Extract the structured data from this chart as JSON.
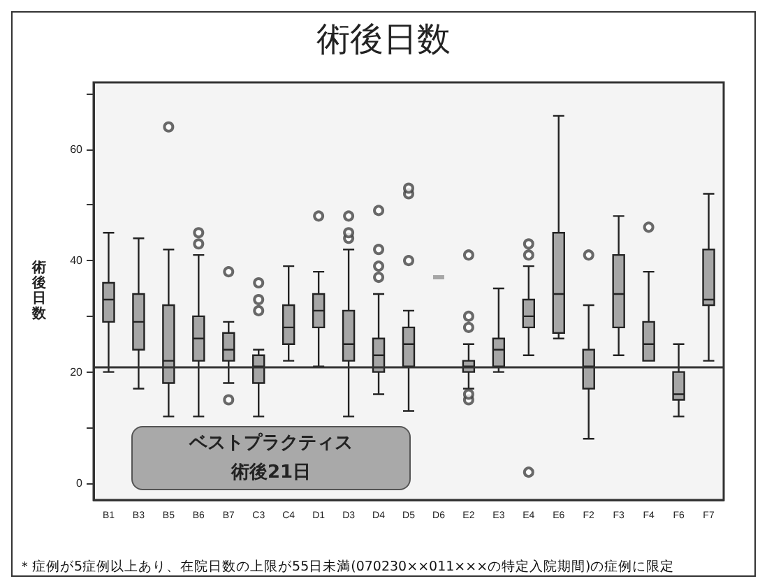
{
  "chart_data": {
    "type": "box",
    "title": "術後日数",
    "ylabel": "術後日数",
    "categories": [
      "B1",
      "B3",
      "B5",
      "B6",
      "B7",
      "C3",
      "C4",
      "D1",
      "D3",
      "D4",
      "D5",
      "D6",
      "E2",
      "E3",
      "E4",
      "E6",
      "F2",
      "F3",
      "F4",
      "F6",
      "F7"
    ],
    "boxes": [
      {
        "low": 20,
        "q1": 29,
        "median": 33,
        "q3": 36,
        "high": 45
      },
      {
        "low": 17,
        "q1": 24,
        "median": 29,
        "q3": 34,
        "high": 44
      },
      {
        "low": 12,
        "q1": 18,
        "median": 22,
        "q3": 32,
        "high": 42,
        "outliers": [
          64
        ]
      },
      {
        "low": 12,
        "q1": 22,
        "median": 26,
        "q3": 30,
        "high": 41,
        "outliers": [
          43,
          45
        ]
      },
      {
        "low": 18,
        "q1": 22,
        "median": 24,
        "q3": 27,
        "high": 29,
        "outliers": [
          15,
          38
        ]
      },
      {
        "low": 12,
        "q1": 18,
        "median": 21,
        "q3": 23,
        "high": 24,
        "outliers": [
          31,
          33,
          36
        ]
      },
      {
        "low": 22,
        "q1": 25,
        "median": 28,
        "q3": 32,
        "high": 39
      },
      {
        "low": 21,
        "q1": 28,
        "median": 31,
        "q3": 34,
        "high": 38,
        "outliers": [
          48
        ]
      },
      {
        "low": 12,
        "q1": 22,
        "median": 25,
        "q3": 31,
        "high": 42,
        "outliers": [
          44,
          45,
          48
        ]
      },
      {
        "low": 16,
        "q1": 20,
        "median": 23,
        "q3": 26,
        "high": 34,
        "outliers": [
          37,
          39,
          42,
          49
        ]
      },
      {
        "low": 13,
        "q1": 21,
        "median": 25,
        "q3": 28,
        "high": 31,
        "outliers": [
          40,
          52,
          53
        ]
      },
      {
        "low": 37,
        "q1": 37,
        "median": 37,
        "q3": 37,
        "high": 37
      },
      {
        "low": 17,
        "q1": 20,
        "median": 21,
        "q3": 22,
        "high": 25,
        "outliers": [
          15,
          16,
          28,
          30,
          41
        ]
      },
      {
        "low": 20,
        "q1": 21,
        "median": 24,
        "q3": 26,
        "high": 35
      },
      {
        "low": 23,
        "q1": 28,
        "median": 30,
        "q3": 33,
        "high": 39,
        "outliers": [
          2,
          41,
          43
        ]
      },
      {
        "low": 26,
        "q1": 27,
        "median": 34,
        "q3": 45,
        "high": 66
      },
      {
        "low": 8,
        "q1": 17,
        "median": 21,
        "q3": 24,
        "high": 32,
        "outliers": [
          41
        ]
      },
      {
        "low": 23,
        "q1": 28,
        "median": 34,
        "q3": 41,
        "high": 48
      },
      {
        "low": 22,
        "q1": 22,
        "median": 25,
        "q3": 29,
        "high": 38,
        "outliers": [
          46
        ]
      },
      {
        "low": 12,
        "q1": 15,
        "median": 16,
        "q3": 20,
        "high": 25
      },
      {
        "low": 22,
        "q1": 32,
        "median": 33,
        "q3": 42,
        "high": 52
      }
    ],
    "color": "#a6a6a6",
    "ylim": [
      -3,
      72
    ],
    "yticks": [
      0,
      {
        "value": 10,
        "label": null
      },
      20,
      {
        "value": 30,
        "label": null
      },
      40,
      {
        "value": 50,
        "label": null
      },
      60,
      {
        "value": 70,
        "label": null
      }
    ],
    "ref_lines": [
      {
        "axis": "y",
        "value": 21,
        "color": "#333333"
      }
    ],
    "annotations": [
      "ベストプラクティス",
      "術後21日",
      "＊症例が5症例以上あり、在院日数の上限が55日未満(070230××011×××の特定入院期間)の症例に限定"
    ],
    "grid": false
  }
}
